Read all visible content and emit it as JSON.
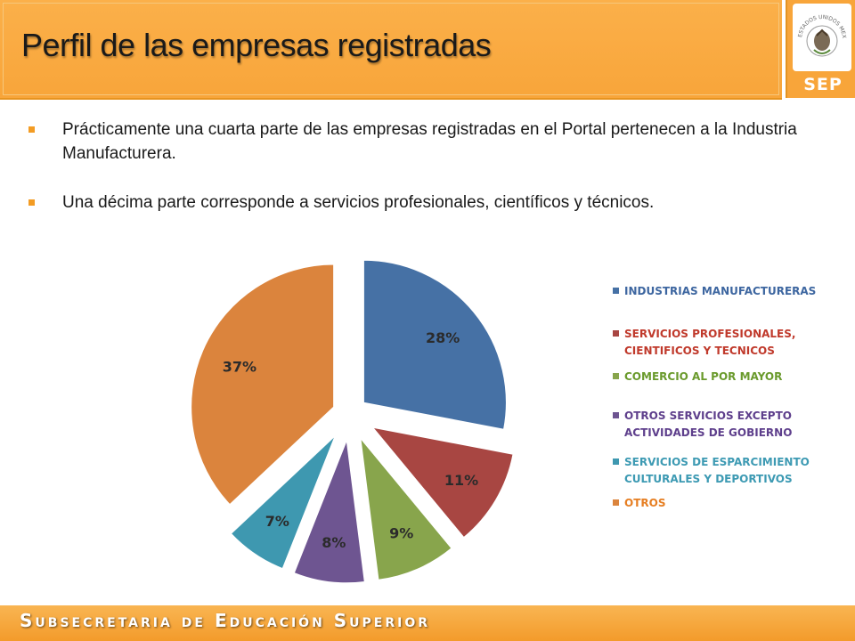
{
  "title": "Perfil de las empresas registradas",
  "logo": {
    "label": "SEP",
    "seal_text": "ESTADOS UNIDOS MEXICANOS"
  },
  "bullets": [
    "Prácticamente una cuarta parte de las empresas registradas en el Portal pertenecen a la Industria Manufacturera.",
    "Una décima parte corresponde a servicios profesionales, científicos y técnicos."
  ],
  "footer": "Subsecretaria de Educación Superior",
  "chart_data": {
    "type": "pie",
    "exploded": true,
    "start_angle_deg": 0,
    "direction": "clockwise",
    "legend_position": "right",
    "slices": [
      {
        "label": "INDUSTRIAS MANUFACTURERAS",
        "value": 28,
        "display": "28%",
        "color": "#4671a5"
      },
      {
        "label": "SERVICIOS PROFESIONALES, CIENTIFICOS Y TECNICOS",
        "value": 11,
        "display": "11%",
        "color": "#a84642"
      },
      {
        "label": "COMERCIO AL POR MAYOR",
        "value": 9,
        "display": "9%",
        "color": "#88a54c"
      },
      {
        "label": "OTROS SERVICIOS EXCEPTO ACTIVIDADES DE GOBIERNO",
        "value": 8,
        "display": "8%",
        "color": "#6e5591"
      },
      {
        "label": "SERVICIOS DE ESPARCIMIENTO CULTURALES Y DEPORTIVOS",
        "value": 7,
        "display": "7%",
        "color": "#3e98b0"
      },
      {
        "label": "OTROS",
        "value": 37,
        "display": "37%",
        "color": "#db843d"
      }
    ]
  },
  "colors": {
    "header": "#f8a53a",
    "accent": "#f39c24",
    "legend_text": [
      "#3d66a0",
      "#c0392b",
      "#6a9a2c",
      "#5e3f8c",
      "#3d9ab3",
      "#e67e22"
    ]
  }
}
